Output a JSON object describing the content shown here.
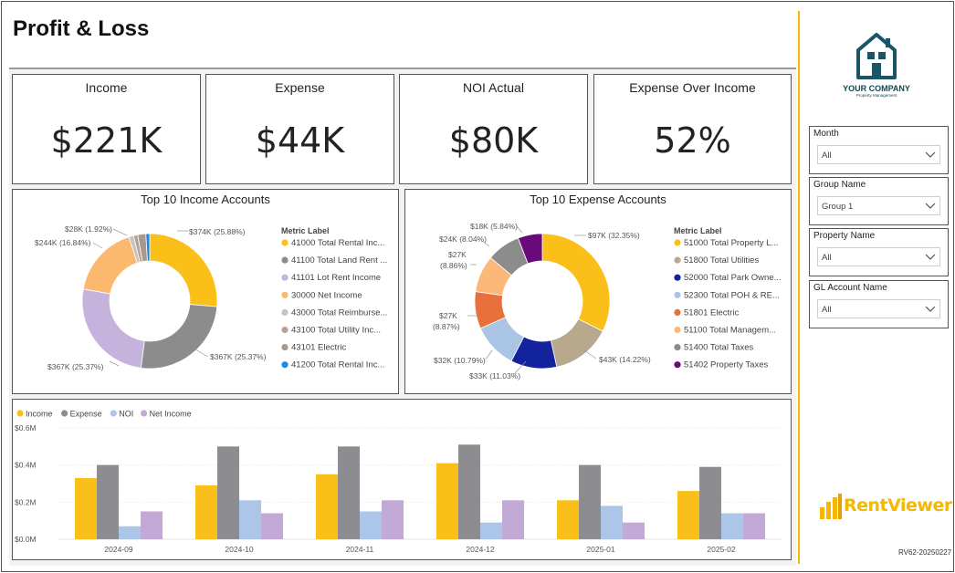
{
  "page": {
    "title": "Profit & Loss",
    "version": "RV62-20250227"
  },
  "brand": {
    "company_name": "YOUR COMPANY",
    "company_sub": "Property Management",
    "product": "RentViewer",
    "accent": "#f5b800",
    "logo_color": "#1a5468"
  },
  "kpis": [
    {
      "title": "Income",
      "value": "$221K"
    },
    {
      "title": "Expense",
      "value": "$44K"
    },
    {
      "title": "NOI Actual",
      "value": "$80K"
    },
    {
      "title": "Expense Over Income",
      "value": "52%"
    }
  ],
  "income_donut": {
    "title": "Top 10 Income Accounts",
    "legend_title": "Metric Label",
    "legend": [
      {
        "label": "41000 Total Rental Inc...",
        "color": "#fbbf1a"
      },
      {
        "label": "41100 Total Land Rent ...",
        "color": "#8c8c8c"
      },
      {
        "label": "41101 Lot Rent Income",
        "color": "#c5b3dd"
      },
      {
        "label": "30000 Net Income",
        "color": "#fcb86e"
      },
      {
        "label": "43000 Total Reimburse...",
        "color": "#c7c3c0"
      },
      {
        "label": "43100 Total Utility Inc...",
        "color": "#b8a295"
      },
      {
        "label": "43101 Electric",
        "color": "#a69a8f"
      },
      {
        "label": "41200 Total Rental Inc...",
        "color": "#1e88e5"
      }
    ],
    "labels": [
      "$374K (25.88%)",
      "$367K (25.37%)",
      "$367K (25.37%)",
      "$244K (16.84%)",
      "$28K (1.92%)"
    ]
  },
  "expense_donut": {
    "title": "Top 10 Expense Accounts",
    "legend_title": "Metric Label",
    "legend": [
      {
        "label": "51000 Total Property L...",
        "color": "#fbbf1a"
      },
      {
        "label": "51800 Total Utilities",
        "color": "#b8a88e"
      },
      {
        "label": "52000 Total Park Owne...",
        "color": "#13239b"
      },
      {
        "label": "52300 Total POH & RE...",
        "color": "#aac4e6"
      },
      {
        "label": "51801 Electric",
        "color": "#e8703a"
      },
      {
        "label": "51100 Total Managem...",
        "color": "#fcb878"
      },
      {
        "label": "51400 Total Taxes",
        "color": "#8c8c8c"
      },
      {
        "label": "51402 Property Taxes",
        "color": "#6a0a7a"
      }
    ],
    "labels": [
      "$97K (32.35%)",
      "$43K (14.22%)",
      "$33K (11.03%)",
      "$32K (10.79%)",
      "$27K",
      "(8.87%)",
      "$27K",
      "(8.86%)",
      "$24K (8.04%)",
      "$18K (5.84%)"
    ]
  },
  "chart_data": {
    "type": "bar",
    "categories": [
      "2024-09",
      "2024-10",
      "2024-11",
      "2024-12",
      "2025-01",
      "2025-02"
    ],
    "series": [
      {
        "name": "Income",
        "color": "#fbbf1a",
        "values": [
          0.33,
          0.29,
          0.35,
          0.41,
          0.21,
          0.26
        ]
      },
      {
        "name": "Expense",
        "color": "#8c8c91",
        "values": [
          0.4,
          0.5,
          0.5,
          0.51,
          0.4,
          0.39
        ]
      },
      {
        "name": "NOI",
        "color": "#abc6e8",
        "values": [
          0.07,
          0.21,
          0.15,
          0.09,
          0.18,
          0.14
        ]
      },
      {
        "name": "Net Income",
        "color": "#c3aad6",
        "values": [
          0.15,
          0.14,
          0.21,
          0.21,
          0.09,
          0.14
        ]
      }
    ],
    "yticks": [
      "$0.0M",
      "$0.2M",
      "$0.4M",
      "$0.6M"
    ],
    "ylim": [
      0,
      0.6
    ],
    "grid": true,
    "legend": "top-left"
  },
  "slicers": [
    {
      "label": "Month",
      "value": "All"
    },
    {
      "label": "Group Name",
      "value": "Group 1"
    },
    {
      "label": "Property Name",
      "value": "All"
    },
    {
      "label": "GL Account Name",
      "value": "All"
    }
  ]
}
